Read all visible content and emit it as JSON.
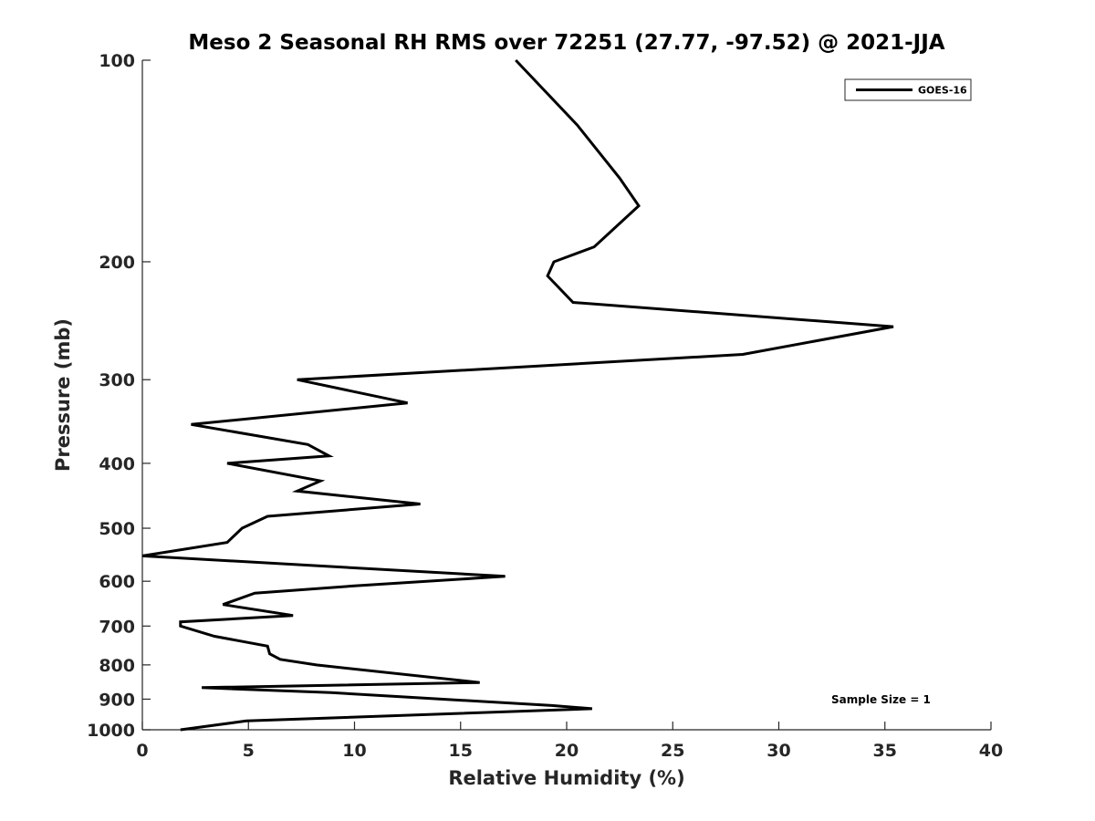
{
  "chart_data": {
    "type": "line",
    "title": "Meso 2 Seasonal RH RMS over 72251 (27.77, -97.52) @ 2021-JJA",
    "xlabel": "Relative Humidity (%)",
    "ylabel": "Pressure (mb)",
    "xlim": [
      0,
      40
    ],
    "ylim": [
      100,
      1000
    ],
    "y_scale": "log",
    "y_reversed": true,
    "x_ticks": [
      0,
      5,
      10,
      15,
      20,
      25,
      30,
      35,
      40
    ],
    "x_tick_labels": [
      "0",
      "5",
      "10",
      "15",
      "20",
      "25",
      "30",
      "35",
      "40"
    ],
    "y_ticks": [
      100,
      200,
      300,
      400,
      500,
      600,
      700,
      800,
      900,
      1000
    ],
    "y_tick_labels": [
      "100",
      "200",
      "300",
      "400",
      "500",
      "600",
      "700",
      "800",
      "900",
      "1000"
    ],
    "grid": false,
    "legend_position": "top-right",
    "annotation": "Sample Size = 1",
    "series": [
      {
        "name": "GOES-16",
        "color": "#000000",
        "x": [
          17.6,
          20.5,
          22.5,
          23.4,
          21.3,
          19.4,
          19.1,
          20.3,
          35.4,
          28.3,
          7.3,
          12.5,
          2.3,
          7.8,
          8.8,
          4.0,
          8.4,
          7.3,
          13.1,
          5.9,
          4.7,
          4.0,
          0.0,
          17.1,
          9.9,
          5.3,
          3.8,
          7.1,
          1.8,
          1.8,
          3.4,
          5.9,
          6.0,
          6.5,
          8.2,
          15.9,
          2.8,
          8.9,
          19.3,
          21.2,
          4.9,
          1.8
        ],
        "y": [
          100,
          125,
          150,
          165,
          190,
          200,
          210,
          230,
          250,
          275,
          300,
          325,
          350,
          375,
          390,
          400,
          425,
          440,
          460,
          480,
          500,
          525,
          550,
          590,
          610,
          625,
          650,
          675,
          690,
          700,
          725,
          750,
          770,
          785,
          800,
          850,
          865,
          880,
          920,
          930,
          970,
          1000
        ]
      }
    ]
  }
}
